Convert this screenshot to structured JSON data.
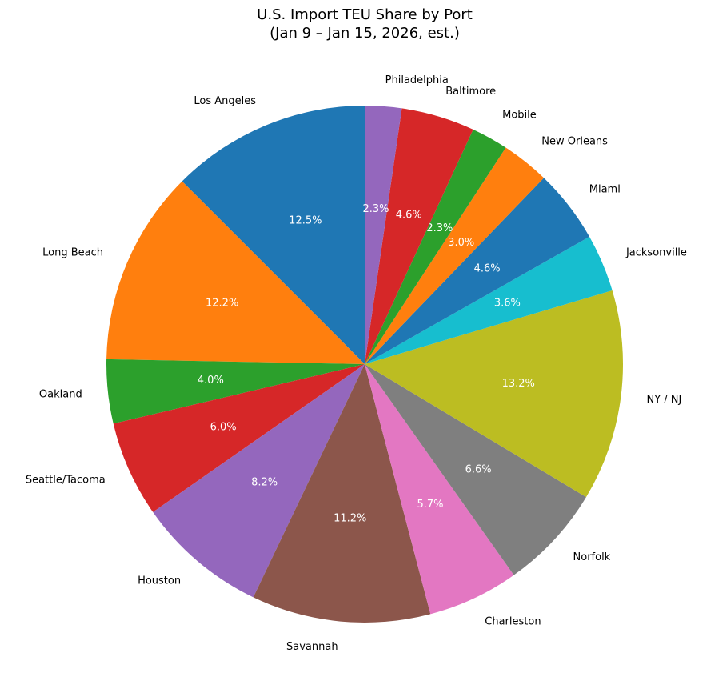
{
  "chart_data": {
    "type": "pie",
    "title": "U.S. Import TEU Share by Port",
    "subtitle": "(Jan 9 – Jan 15, 2026, est.)",
    "categories": [
      "Los Angeles",
      "Long Beach",
      "Oakland",
      "Seattle/Tacoma",
      "Houston",
      "Savannah",
      "Charleston",
      "Norfolk",
      "NY / NJ",
      "Jacksonville",
      "Miami",
      "New Orleans",
      "Mobile",
      "Baltimore",
      "Philadelphia"
    ],
    "values": [
      12.5,
      12.2,
      4.0,
      6.0,
      8.2,
      11.2,
      5.7,
      6.6,
      13.2,
      3.6,
      4.6,
      3.0,
      2.3,
      4.6,
      2.3
    ],
    "value_labels": [
      "12.5%",
      "12.2%",
      "4.0%",
      "6.0%",
      "8.2%",
      "11.2%",
      "5.7%",
      "6.6%",
      "13.2%",
      "3.6%",
      "4.6%",
      "3.0%",
      "2.3%",
      "4.6%",
      "2.3%"
    ],
    "colors": [
      "#1f77b4",
      "#ff7f0e",
      "#2ca02c",
      "#d62728",
      "#9467bd",
      "#8c564b",
      "#e377c2",
      "#7f7f7f",
      "#bcbd22",
      "#17becf",
      "#1f77b4",
      "#ff7f0e",
      "#2ca02c",
      "#d62728",
      "#9467bd"
    ]
  }
}
